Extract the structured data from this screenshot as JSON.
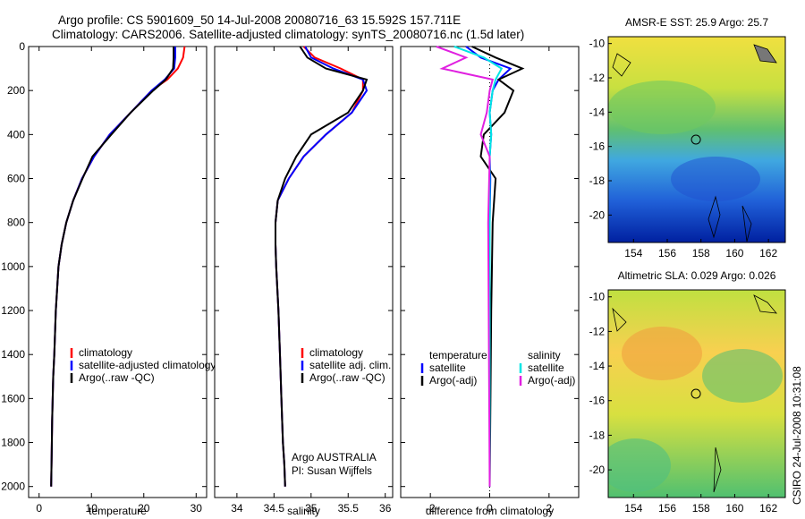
{
  "header": {
    "line1": "Argo profile: CS 5901609_50 14-Jul-2008 20080716_63 15.592S 157.711E",
    "line2": "Climatology: CARS2006. Satellite-adjusted climatology: synTS_20080716.nc (1.5d later)"
  },
  "side_text": "CSIRO 24-Jul-2008 10:31:08",
  "colors": {
    "red": "#ff0000",
    "blue": "#0000ff",
    "black": "#000000",
    "cyan": "#00e5e5",
    "magenta": "#e020e0"
  },
  "chart_data": [
    {
      "type": "line",
      "xlabel": "temperature",
      "ylabel": "",
      "xlim": [
        -2,
        32
      ],
      "ylim": [
        2050,
        0
      ],
      "y_reversed": true,
      "xticks": [
        0,
        10,
        20,
        30
      ],
      "yticks": [
        0,
        200,
        400,
        600,
        800,
        1000,
        1200,
        1400,
        1600,
        1800,
        2000
      ],
      "legend": {
        "placement": "bottom-right",
        "items": [
          "climatology",
          "satellite-adjusted climatology",
          "Argo(..raw -QC)"
        ]
      },
      "series": [
        {
          "name": "climatology",
          "color": "red",
          "x": [
            27.8,
            27.5,
            26.5,
            24.5,
            21.5,
            17.5,
            13.5,
            10.5,
            8.2,
            6.5,
            5.2,
            4.3,
            3.7,
            3.2,
            2.9,
            2.7,
            2.6,
            2.5,
            2.4,
            2.3
          ],
          "y": [
            0,
            50,
            100,
            150,
            200,
            300,
            400,
            500,
            600,
            700,
            800,
            900,
            1000,
            1200,
            1400,
            1500,
            1600,
            1700,
            1850,
            2000
          ]
        },
        {
          "name": "satellite-adjusted climatology",
          "color": "blue",
          "x": [
            26.0,
            26.0,
            25.8,
            24.0,
            21.5,
            17.5,
            13.5,
            10.5,
            8.2,
            6.5,
            5.2,
            4.3,
            3.7,
            3.2,
            2.9,
            2.7,
            2.6,
            2.5,
            2.4,
            2.3
          ],
          "y": [
            0,
            50,
            100,
            150,
            200,
            300,
            400,
            500,
            600,
            700,
            800,
            900,
            1000,
            1200,
            1400,
            1500,
            1600,
            1700,
            1850,
            2000
          ]
        },
        {
          "name": "Argo(..raw -QC)",
          "color": "black",
          "x": [
            25.7,
            25.7,
            25.6,
            24.2,
            21.8,
            17.5,
            13.8,
            10.2,
            8.3,
            6.5,
            5.2,
            4.3,
            3.7,
            3.2,
            2.9,
            2.7,
            2.6,
            2.5,
            2.4,
            2.3
          ],
          "y": [
            0,
            50,
            100,
            150,
            200,
            300,
            400,
            500,
            600,
            700,
            800,
            900,
            1000,
            1200,
            1400,
            1500,
            1600,
            1700,
            1850,
            2000
          ]
        }
      ]
    },
    {
      "type": "line",
      "xlabel": "salinity",
      "ylabel": "",
      "xlim": [
        33.7,
        36.1
      ],
      "ylim": [
        2050,
        0
      ],
      "y_reversed": true,
      "xticks": [
        34,
        34.5,
        35,
        35.5,
        36
      ],
      "yticks": [
        0,
        200,
        400,
        600,
        800,
        1000,
        1200,
        1400,
        1600,
        1800,
        2000
      ],
      "legend": {
        "placement": "bottom-right",
        "items": [
          "climatology",
          "satellite adj. clim.",
          "Argo(..raw -QC)"
        ]
      },
      "annotations": [
        "Argo AUSTRALIA",
        "PI: Susan Wijffels"
      ],
      "series": [
        {
          "name": "climatology",
          "color": "red",
          "x": [
            34.9,
            35.05,
            35.4,
            35.7,
            35.7,
            35.55,
            35.2,
            34.9,
            34.7,
            34.55,
            34.52,
            34.52,
            34.53,
            34.56,
            34.58,
            34.6,
            34.62,
            34.64,
            34.65
          ],
          "y": [
            0,
            50,
            100,
            150,
            200,
            300,
            400,
            500,
            600,
            700,
            800,
            900,
            1000,
            1200,
            1400,
            1600,
            1800,
            1900,
            2000
          ]
        },
        {
          "name": "satellite adj. clim.",
          "color": "blue",
          "x": [
            34.92,
            35.0,
            35.3,
            35.7,
            35.75,
            35.55,
            35.2,
            34.9,
            34.7,
            34.55,
            34.52,
            34.52,
            34.53,
            34.56,
            34.58,
            34.6,
            34.62,
            34.64,
            34.65
          ],
          "y": [
            0,
            50,
            100,
            150,
            200,
            300,
            400,
            500,
            600,
            700,
            800,
            900,
            1000,
            1200,
            1400,
            1600,
            1800,
            1900,
            2000
          ]
        },
        {
          "name": "Argo(..raw -QC)",
          "color": "black",
          "x": [
            34.85,
            34.95,
            35.2,
            35.75,
            35.7,
            35.5,
            35.0,
            34.8,
            34.65,
            34.55,
            34.52,
            34.52,
            34.53,
            34.56,
            34.58,
            34.6,
            34.62,
            34.64,
            34.65
          ],
          "y": [
            0,
            50,
            100,
            150,
            200,
            300,
            400,
            500,
            600,
            700,
            800,
            900,
            1000,
            1200,
            1400,
            1600,
            1800,
            1900,
            2000
          ]
        }
      ]
    },
    {
      "type": "line",
      "xlabel": "difference from climatology",
      "ylabel": "",
      "xlim": [
        -3,
        3
      ],
      "ylim": [
        2050,
        0
      ],
      "y_reversed": true,
      "xticks": [
        -2,
        0,
        2
      ],
      "yticks": [
        0,
        200,
        400,
        600,
        800,
        1000,
        1200,
        1400,
        1600,
        1800,
        2000
      ],
      "legend": {
        "placement": "bottom",
        "columns": [
          {
            "heading": "temperature",
            "items": [
              "satellite",
              "Argo(-adj)"
            ]
          },
          {
            "heading": "salinity",
            "items": [
              "satellite",
              "Argo(-adj)"
            ]
          }
        ]
      },
      "series": [
        {
          "name": "temperature satellite",
          "color": "blue",
          "x": [
            -0.8,
            -0.3,
            0.7,
            0.3,
            0.1,
            0.0,
            0.05,
            0.0,
            0.02,
            0.0,
            0.0,
            0.0
          ],
          "y": [
            0,
            50,
            100,
            150,
            200,
            300,
            400,
            500,
            600,
            800,
            1200,
            2000
          ]
        },
        {
          "name": "temperature Argo(-adj)",
          "color": "black",
          "x": [
            -0.6,
            0.2,
            1.1,
            0.3,
            0.8,
            0.5,
            -0.2,
            -0.3,
            0.2,
            0.1,
            0.05,
            0.0
          ],
          "y": [
            0,
            50,
            100,
            150,
            200,
            300,
            400,
            500,
            600,
            800,
            1200,
            2000
          ]
        },
        {
          "name": "salinity satellite",
          "color": "cyan",
          "x": [
            -1.2,
            -0.2,
            0.4,
            0.2,
            0.1,
            0.0,
            0.05,
            0.0,
            0.0,
            0.0
          ],
          "y": [
            0,
            50,
            100,
            150,
            200,
            300,
            400,
            500,
            800,
            2000
          ]
        },
        {
          "name": "salinity Argo(-adj)",
          "color": "magenta",
          "x": [
            -1.8,
            -0.8,
            -1.6,
            0.1,
            0.0,
            -0.1,
            -0.3,
            0.0,
            -0.05,
            0.0
          ],
          "y": [
            0,
            50,
            100,
            150,
            200,
            300,
            400,
            500,
            800,
            2000
          ]
        }
      ]
    },
    {
      "type": "heatmap",
      "title": "AMSR-E SST: 25.9 Argo: 25.7",
      "xlim": [
        152.5,
        163
      ],
      "ylim": [
        -21.6,
        -9.6
      ],
      "xticks": [
        154,
        156,
        158,
        160,
        162
      ],
      "yticks": [
        -10,
        -12,
        -14,
        -16,
        -18,
        -20
      ],
      "marker": {
        "x": 157.7,
        "y": -15.6
      }
    },
    {
      "type": "heatmap",
      "title": "Altimetric SLA: 0.029 Argo: 0.026",
      "xlim": [
        152.5,
        163
      ],
      "ylim": [
        -21.6,
        -9.6
      ],
      "xticks": [
        154,
        156,
        158,
        160,
        162
      ],
      "yticks": [
        -10,
        -12,
        -14,
        -16,
        -18,
        -20
      ],
      "marker": {
        "x": 157.7,
        "y": -15.6
      }
    }
  ]
}
